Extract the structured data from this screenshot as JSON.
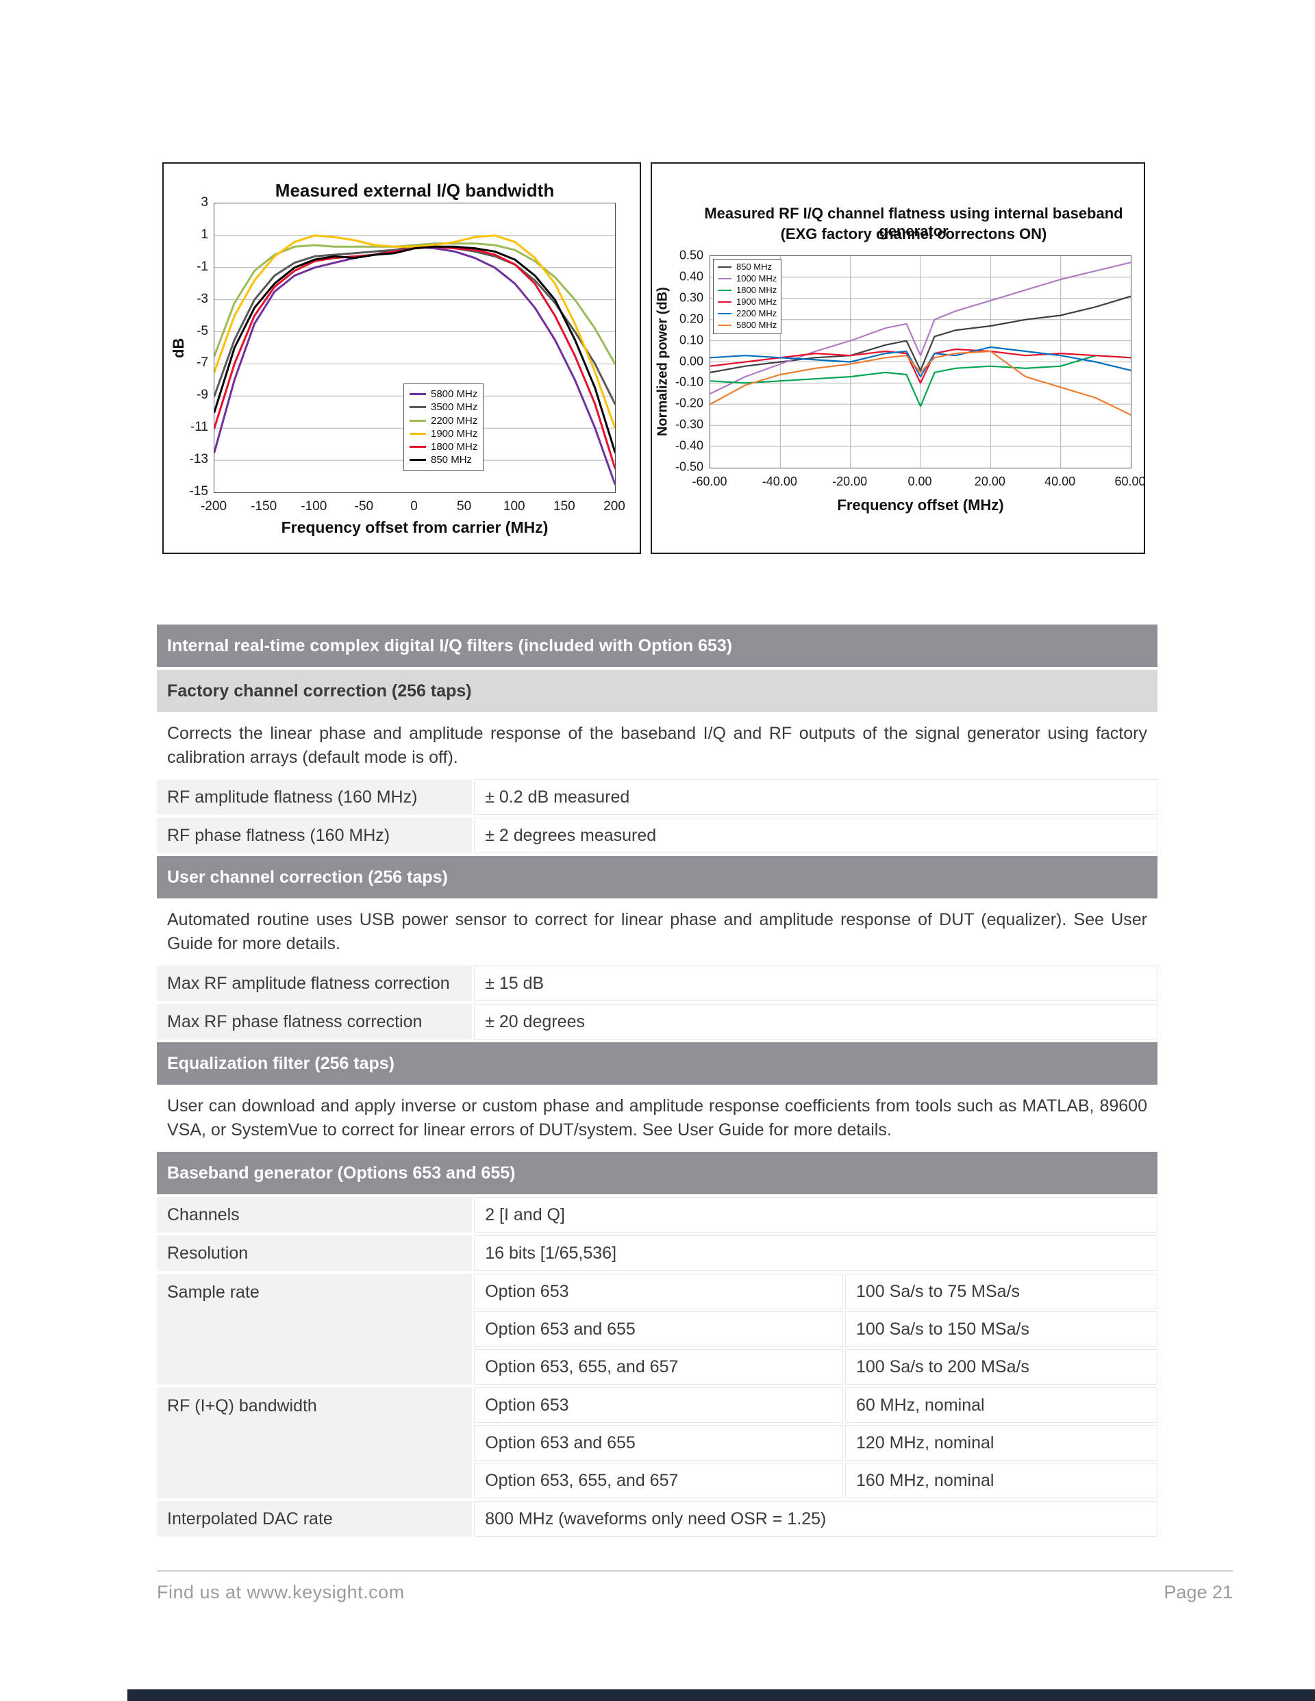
{
  "page": {
    "footer": {
      "left": "Find us at www.keysight.com",
      "right": "Page 21"
    }
  },
  "chart_data": [
    {
      "type": "line",
      "title": "Measured external I/Q bandwidth",
      "xlabel": "Frequency offset from carrier (MHz)",
      "ylabel": "dB",
      "xlim": [
        -200,
        200
      ],
      "ylim": [
        -15,
        3
      ],
      "xticks": [
        -200,
        -150,
        -100,
        -50,
        0,
        50,
        100,
        150,
        200
      ],
      "yticks": [
        3,
        1,
        -1,
        -3,
        -5,
        -7,
        -9,
        -11,
        -13,
        -15
      ],
      "grid": "horizontal",
      "legend_position": "inside-center-right",
      "x": [
        -200,
        -180,
        -160,
        -140,
        -120,
        -100,
        -80,
        -60,
        -40,
        -20,
        0,
        20,
        40,
        60,
        80,
        100,
        120,
        140,
        160,
        180,
        200
      ],
      "series": [
        {
          "name": "5800 MHz",
          "color": "#7030a0",
          "values": [
            -12.5,
            -8,
            -4.5,
            -2.5,
            -1.5,
            -1,
            -0.7,
            -0.4,
            -0.2,
            0.1,
            0.3,
            0.2,
            0,
            -0.4,
            -1,
            -2,
            -3.5,
            -5.5,
            -8,
            -11,
            -14.5
          ]
        },
        {
          "name": "3500 MHz",
          "color": "#595959",
          "values": [
            -9,
            -5.5,
            -3,
            -1.5,
            -0.7,
            -0.3,
            -0.2,
            -0.1,
            0,
            0.1,
            0.3,
            0.3,
            0.2,
            0,
            -0.3,
            -0.8,
            -1.8,
            -3.2,
            -5,
            -7,
            -9.5
          ]
        },
        {
          "name": "2200 MHz",
          "color": "#9bbb59",
          "values": [
            -6.5,
            -3.2,
            -1.2,
            -0.2,
            0.3,
            0.4,
            0.3,
            0.3,
            0.3,
            0.3,
            0.4,
            0.5,
            0.5,
            0.5,
            0.4,
            0.1,
            -0.6,
            -1.6,
            -3,
            -4.8,
            -7
          ]
        },
        {
          "name": "1900 MHz",
          "color": "#ffc000",
          "values": [
            -7.5,
            -4,
            -1.8,
            -0.3,
            0.6,
            1,
            0.9,
            0.7,
            0.4,
            0.3,
            0.3,
            0.4,
            0.6,
            0.9,
            1,
            0.6,
            -0.4,
            -2,
            -4.5,
            -7.5,
            -11
          ]
        },
        {
          "name": "1800 MHz",
          "color": "#e8112d",
          "values": [
            -11,
            -7,
            -4,
            -2.2,
            -1.2,
            -0.6,
            -0.4,
            -0.3,
            -0.2,
            0,
            0.2,
            0.3,
            0.2,
            0.1,
            -0.2,
            -0.8,
            -2,
            -4,
            -6.5,
            -9.5,
            -13.5
          ]
        },
        {
          "name": "850 MHz",
          "color": "#000000",
          "values": [
            -10,
            -6,
            -3.5,
            -2,
            -1,
            -0.5,
            -0.3,
            -0.4,
            -0.2,
            -0.1,
            0.2,
            0.3,
            0.3,
            0.2,
            0,
            -0.5,
            -1.5,
            -3,
            -5.5,
            -8.5,
            -12.5
          ]
        }
      ]
    },
    {
      "type": "line",
      "title": "Measured RF I/Q channel flatness using internal baseband generator",
      "subtitle": "(EXG factory channel correctons ON)",
      "xlabel": "Frequency offset (MHz)",
      "ylabel": "Normalized power (dB)",
      "xlim": [
        -60,
        60
      ],
      "ylim": [
        -0.5,
        0.5
      ],
      "xticks": [
        -60,
        -40,
        -20,
        0,
        20,
        40,
        60
      ],
      "yticks": [
        0.5,
        0.4,
        0.3,
        0.2,
        0.1,
        0,
        -0.1,
        -0.2,
        -0.3,
        -0.4,
        -0.5
      ],
      "grid": "both",
      "legend_position": "inside-top-left",
      "x": [
        -60,
        -50,
        -40,
        -30,
        -20,
        -10,
        -4,
        0,
        4,
        10,
        20,
        30,
        40,
        50,
        60
      ],
      "series": [
        {
          "name": "850 MHz",
          "color": "#404040",
          "values": [
            -0.05,
            -0.02,
            0,
            0.02,
            0.03,
            0.08,
            0.1,
            -0.04,
            0.12,
            0.15,
            0.17,
            0.2,
            0.22,
            0.26,
            0.31
          ]
        },
        {
          "name": "1000 MHz",
          "color": "#b07cc6",
          "values": [
            -0.15,
            -0.07,
            -0.01,
            0.05,
            0.1,
            0.16,
            0.18,
            0.03,
            0.2,
            0.24,
            0.29,
            0.34,
            0.39,
            0.43,
            0.47
          ]
        },
        {
          "name": "1800 MHz",
          "color": "#00a551",
          "values": [
            -0.09,
            -0.1,
            -0.09,
            -0.08,
            -0.07,
            -0.05,
            -0.06,
            -0.21,
            -0.05,
            -0.03,
            -0.02,
            -0.03,
            -0.02,
            0.03,
            0.02
          ]
        },
        {
          "name": "1900 MHz",
          "color": "#e8112d",
          "values": [
            -0.02,
            0,
            0.02,
            0.04,
            0.03,
            0.05,
            0.04,
            -0.1,
            0.04,
            0.06,
            0.05,
            0.03,
            0.04,
            0.03,
            0.02
          ]
        },
        {
          "name": "2200 MHz",
          "color": "#0070c0",
          "values": [
            0.02,
            0.03,
            0.02,
            0.01,
            0,
            0.04,
            0.05,
            -0.07,
            0.04,
            0.03,
            0.07,
            0.05,
            0.03,
            0,
            -0.04
          ]
        },
        {
          "name": "5800 MHz",
          "color": "#ed7d31",
          "values": [
            -0.2,
            -0.11,
            -0.06,
            -0.03,
            -0.01,
            0.02,
            0.03,
            -0.05,
            0.02,
            0.04,
            0.05,
            -0.07,
            -0.12,
            -0.17,
            -0.25
          ]
        }
      ]
    }
  ],
  "specs": {
    "s1_title": "Internal real-time complex digital I/Q filters (included with Option 653)",
    "s1_sub": "Factory channel correction (256 taps)",
    "s1_desc": "Corrects the linear phase and amplitude response of the baseband I/Q and RF outputs of the signal generator using factory calibration arrays (default mode is off).",
    "s1_rows": [
      {
        "label": "RF amplitude flatness (160 MHz)",
        "value": "± 0.2 dB measured"
      },
      {
        "label": "RF phase flatness (160 MHz)",
        "value": "± 2 degrees measured"
      }
    ],
    "s2_title": "User channel correction (256 taps)",
    "s2_desc": "Automated routine uses USB power sensor to correct for linear phase and amplitude response of DUT (equalizer). See User Guide for more details.",
    "s2_rows": [
      {
        "label": "Max RF amplitude flatness correction",
        "value": "± 15 dB"
      },
      {
        "label": "Max RF phase flatness correction",
        "value": "± 20 degrees"
      }
    ],
    "s3_title": "Equalization filter (256 taps)",
    "s3_desc": "User can download and apply inverse or custom phase and amplitude response coefficients from tools such as MATLAB, 89600 VSA, or SystemVue to correct for linear errors of DUT/system. See User Guide for more details.",
    "s4_title": "Baseband generator (Options 653 and 655)",
    "s4_rows": [
      {
        "label": "Channels",
        "value": "2 [I and Q]"
      },
      {
        "label": "Resolution",
        "value": "16 bits [1/65,536]"
      }
    ],
    "sample_rate": {
      "label": "Sample rate",
      "rows": [
        {
          "option": "Option 653",
          "value": "100 Sa/s to 75 MSa/s"
        },
        {
          "option": "Option 653 and 655",
          "value": "100 Sa/s to 150 MSa/s"
        },
        {
          "option": "Option 653, 655, and 657",
          "value": "100 Sa/s to 200 MSa/s"
        }
      ]
    },
    "bandwidth": {
      "label": "RF (I+Q) bandwidth",
      "rows": [
        {
          "option": "Option 653",
          "value": "60 MHz, nominal"
        },
        {
          "option": "Option 653 and 655",
          "value": "120 MHz, nominal"
        },
        {
          "option": "Option 653, 655, and 657",
          "value": "160 MHz, nominal"
        }
      ]
    },
    "dac_row": {
      "label": "Interpolated DAC rate",
      "value": "800 MHz (waveforms only need OSR = 1.25)"
    }
  }
}
